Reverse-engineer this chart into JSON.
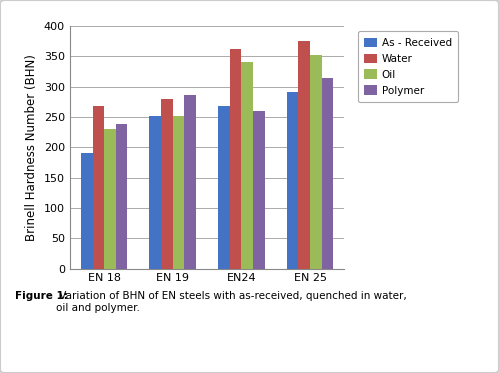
{
  "categories": [
    "EN 18",
    "EN 19",
    "EN24",
    "EN 25"
  ],
  "series": {
    "As - Received": [
      190,
      252,
      269,
      291
    ],
    "Water": [
      269,
      280,
      362,
      375
    ],
    "Oil": [
      231,
      252,
      341,
      352
    ],
    "Polymer": [
      238,
      286,
      260,
      315
    ]
  },
  "colors": {
    "As - Received": "#4472C4",
    "Water": "#C0504D",
    "Oil": "#9BBB59",
    "Polymer": "#8064A2"
  },
  "ylabel": "Brinell Hardness Number (BHN)",
  "ylim": [
    0,
    400
  ],
  "yticks": [
    0,
    50,
    100,
    150,
    200,
    250,
    300,
    350,
    400
  ],
  "grid_color": "#AAAAAA",
  "bg_color": "#FFFFFF",
  "caption_bold": "Figure 1:",
  "caption_normal": " Variation of BHN of EN steels with as-received, quenched in water,\noil and polymer.",
  "bar_width": 0.17,
  "legend_fontsize": 7.5,
  "axis_fontsize": 8.5,
  "tick_fontsize": 8,
  "outer_bg": "#FFFFFF",
  "border_color": "#CCCCCC"
}
